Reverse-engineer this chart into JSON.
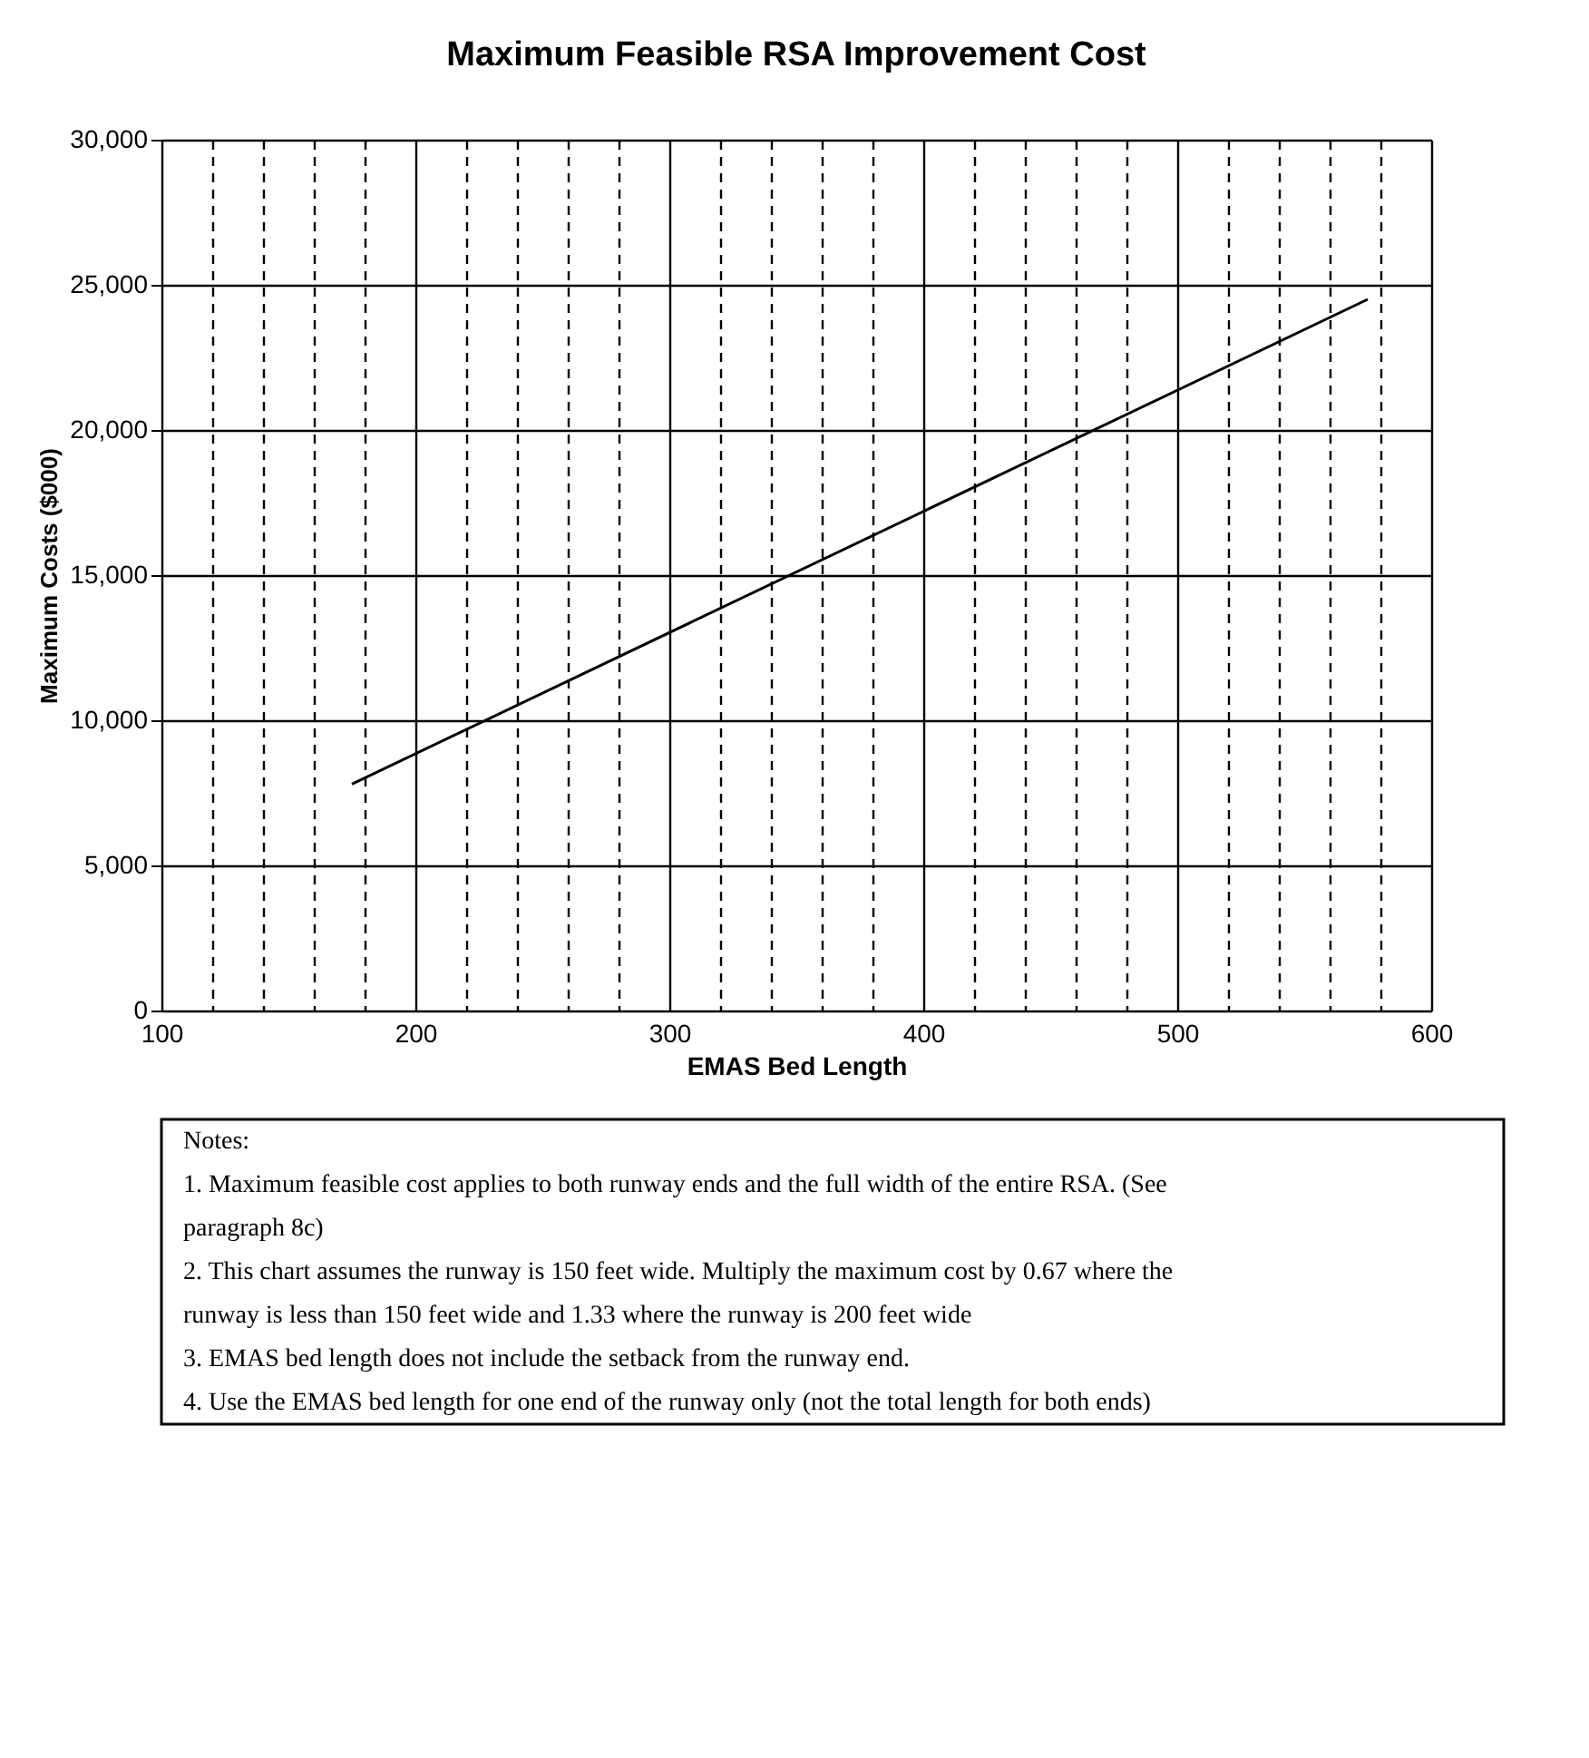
{
  "chart_data": {
    "type": "line",
    "title": "Maximum Feasible RSA Improvement Cost",
    "xlabel": "EMAS Bed Length",
    "ylabel": "Maximum Costs ($000)",
    "x": [
      175,
      575
    ],
    "series": [
      {
        "color": "#000000",
        "values": [
          7800,
          24500
        ]
      }
    ],
    "xlim": [
      100,
      600
    ],
    "ylim": [
      0,
      30000
    ],
    "xticks": [
      100,
      {
        "value": 120,
        "label": null
      },
      {
        "value": 140,
        "label": null
      },
      {
        "value": 160,
        "label": null
      },
      {
        "value": 180,
        "label": null
      },
      200,
      {
        "value": 220,
        "label": null
      },
      {
        "value": 240,
        "label": null
      },
      {
        "value": 260,
        "label": null
      },
      {
        "value": 280,
        "label": null
      },
      300,
      {
        "value": 320,
        "label": null
      },
      {
        "value": 340,
        "label": null
      },
      {
        "value": 360,
        "label": null
      },
      {
        "value": 380,
        "label": null
      },
      400,
      {
        "value": 420,
        "label": null
      },
      {
        "value": 440,
        "label": null
      },
      {
        "value": 460,
        "label": null
      },
      {
        "value": 480,
        "label": null
      },
      500,
      {
        "value": 520,
        "label": null
      },
      {
        "value": 540,
        "label": null
      },
      {
        "value": 560,
        "label": null
      },
      {
        "value": 580,
        "label": null
      },
      600
    ],
    "yticks": [
      0,
      {
        "value": 5000,
        "label": "5,000"
      },
      {
        "value": 10000,
        "label": "10,000"
      },
      {
        "value": 15000,
        "label": "15,000"
      },
      {
        "value": 20000,
        "label": "20,000"
      },
      {
        "value": 25000,
        "label": "25,000"
      },
      {
        "value": 30000,
        "label": "30,000"
      }
    ],
    "grid": true,
    "marker": "none",
    "line_style": "solid",
    "annotations": [
      "Notes:",
      "1. Maximum feasible cost applies to both runway ends and the full width of the entire RSA.  (See paragraph 8c)",
      "2. This chart assumes the runway is 150 feet wide.  Multiply the maximum cost by 0.67 where the runway is less than 150 feet wide and 1.33 where the runway is 200 feet wide",
      "3. EMAS bed length does not include the setback from the runway end.",
      "4. Use the EMAS bed length for one end of the runway only (not the total length for both ends)"
    ]
  }
}
